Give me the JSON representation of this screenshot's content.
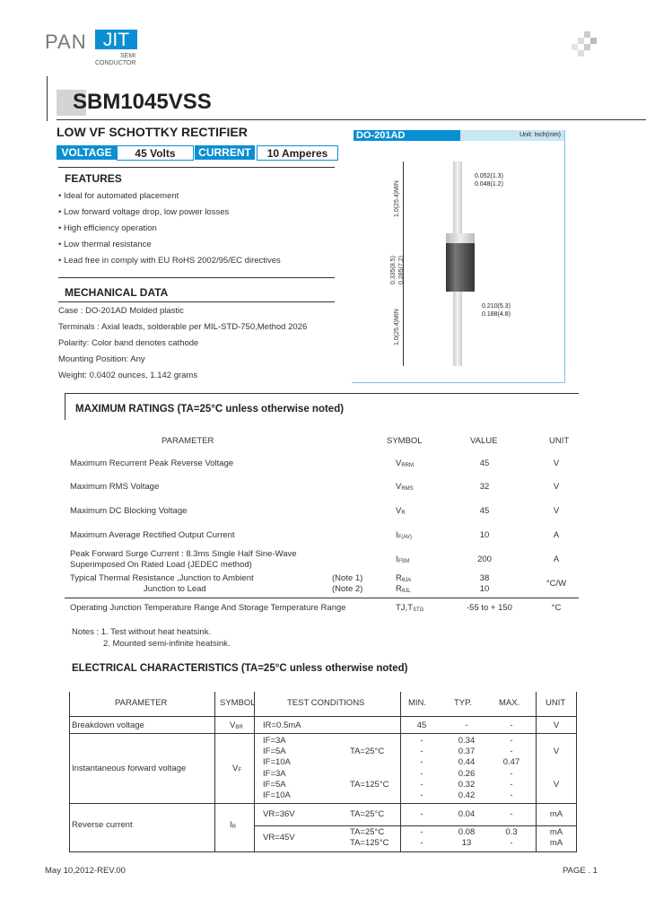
{
  "logo": {
    "left": "PAN",
    "right": "JIT",
    "sub1": "SEMI",
    "sub2": "CONDUCTOR"
  },
  "colors": {
    "accent": "#0a8fd2",
    "accent_light": "#c8e6f4"
  },
  "title": "SBM1045VSS",
  "subtitle": "LOW VF SCHOTTKY RECTIFIER",
  "specs": {
    "voltage_label": "VOLTAGE",
    "voltage_value": "45 Volts",
    "current_label": "CURRENT",
    "current_value": "10 Amperes"
  },
  "features": {
    "heading": "FEATURES",
    "items": [
      "Ideal for automated placement",
      "Low forward voltage drop, low power losses",
      "High efficiency operation",
      "Low thermal resistance",
      "Lead free in comply with EU RoHS 2002/95/EC directives"
    ]
  },
  "mechanical": {
    "heading": "MECHANICAL DATA",
    "items": [
      "Case : DO-201AD Molded plastic",
      "Terminals : Axial leads, solderable per MIL-STD-750,Method 2026",
      "Polarity:  Color band denotes cathode",
      "Mounting Position: Any",
      "Weight: 0.0402 ounces, 1.142 grams"
    ]
  },
  "package": {
    "name": "DO-201AD",
    "unit": "Unit: Inch(mm)",
    "lead_dia": [
      "0.052(1.3)",
      "0.048(1.2)"
    ],
    "body_dia": [
      "0.210(5.3)",
      "0.188(4.8)"
    ],
    "lead_len": "1.0(25.4)MIN",
    "body_len": [
      "0.335(8.5)",
      "0.285(7.2)"
    ]
  },
  "max_ratings": {
    "title": "MAXIMUM  RATINGS (TA=25°C unless otherwise noted)",
    "headers": [
      "PARAMETER",
      "SYMBOL",
      "VALUE",
      "UNIT"
    ],
    "rows": [
      {
        "param": [
          "Maximum Recurrent Peak Reverse Voltage"
        ],
        "note": [],
        "sym": [
          [
            "V",
            "RRM"
          ]
        ],
        "val": [
          "45"
        ],
        "unit": "V"
      },
      {
        "param": [
          "Maximum RMS Voltage"
        ],
        "note": [],
        "sym": [
          [
            "V",
            "RMS"
          ]
        ],
        "val": [
          "32"
        ],
        "unit": "V"
      },
      {
        "param": [
          "Maximum DC Blocking Voltage"
        ],
        "note": [],
        "sym": [
          [
            "V",
            "R"
          ]
        ],
        "val": [
          "45"
        ],
        "unit": "V"
      },
      {
        "param": [
          "Maximum Average Rectified Output Current"
        ],
        "note": [],
        "sym": [
          [
            "I",
            "F(AV)"
          ]
        ],
        "val": [
          "10"
        ],
        "unit": "A"
      },
      {
        "param": [
          "Peak Forward Surge Current : 8.3ms Single Half Sine-Wave",
          "Superimposed On Rated Load (JEDEC method)"
        ],
        "note": [],
        "sym": [
          [
            "I",
            "FSM"
          ]
        ],
        "val": [
          "200"
        ],
        "unit": "A"
      },
      {
        "param": [
          "Typical Thermal Resistance ,Junction to Ambient",
          "Junction to Lead"
        ],
        "note": [
          "(Note 1)",
          "(Note 2)"
        ],
        "sym": [
          [
            "R",
            "θJA"
          ],
          [
            "R",
            "θJL"
          ]
        ],
        "val": [
          "38",
          "10"
        ],
        "unit": "°C/W"
      },
      {
        "param": [
          "Operating Junction Temperature Range And Storage Temperature Range"
        ],
        "note": [],
        "sym": [
          [
            "TJ,T",
            "STG"
          ]
        ],
        "val": [
          "-55 to + 150"
        ],
        "unit": "°C"
      }
    ],
    "notes": [
      "Notes :  1.  Test without heat heatsink.",
      "2.  Mounted semi-infinite heatsink."
    ]
  },
  "electrical": {
    "title": "ELECTRICAL  CHARACTERISTICS (TA=25°C unless otherwise noted)",
    "headers": [
      "PARAMETER",
      "SYMBOL",
      "TEST CONDITIONS",
      "MIN.",
      "TYP.",
      "MAX.",
      "UNIT"
    ],
    "rows": [
      {
        "param": "Breakdown voltage",
        "sym": [
          "V",
          "BR"
        ],
        "cond": "IR=0.5mA",
        "temp": "",
        "min": "45",
        "typ": "-",
        "max": "-",
        "unit": "V"
      },
      {
        "param": "",
        "sym": [
          "",
          ""
        ],
        "cond": "IF=3A",
        "temp": "",
        "min": "-",
        "typ": "0.34",
        "max": "-",
        "unit": ""
      },
      {
        "param": "",
        "sym": [
          "",
          ""
        ],
        "cond": "IF=5A",
        "temp": "TA=25°C",
        "min": "-",
        "typ": "0.37",
        "max": "-",
        "unit": "V"
      },
      {
        "param": "Instantaneous forward voltage",
        "sym": [
          "V",
          "F"
        ],
        "cond": "IF=10A",
        "temp": "",
        "min": "-",
        "typ": "0.44",
        "max": "0.47",
        "unit": ""
      },
      {
        "param": "",
        "sym": [
          "",
          ""
        ],
        "cond": "IF=3A",
        "temp": "",
        "min": "-",
        "typ": "0.26",
        "max": "-",
        "unit": ""
      },
      {
        "param": "",
        "sym": [
          "",
          ""
        ],
        "cond": "IF=5A",
        "temp": "TA=125°C",
        "min": "-",
        "typ": "0.32",
        "max": "-",
        "unit": "V"
      },
      {
        "param": "",
        "sym": [
          "",
          ""
        ],
        "cond": "IF=10A",
        "temp": "",
        "min": "-",
        "typ": "0.42",
        "max": "-",
        "unit": ""
      },
      {
        "param": "",
        "sym": [
          "",
          ""
        ],
        "cond": "VR=36V",
        "temp": "TA=25°C",
        "min": "-",
        "typ": "0.04",
        "max": "-",
        "unit": "mA"
      },
      {
        "param": "Reverse current",
        "sym": [
          "I",
          "R"
        ],
        "cond": "",
        "temp": "",
        "min": "",
        "typ": "",
        "max": "",
        "unit": ""
      },
      {
        "param": "",
        "sym": [
          "",
          ""
        ],
        "cond": "VR=45V",
        "temp": "TA=25°C",
        "min": "-",
        "typ": "0.08",
        "max": "0.3",
        "unit": "mA"
      },
      {
        "param": "",
        "sym": [
          "",
          ""
        ],
        "cond": "",
        "temp": "TA=125°C",
        "min": "-",
        "typ": "13",
        "max": "-",
        "unit": "mA"
      }
    ]
  },
  "footer": {
    "date": "May 10,2012-REV.00",
    "page": "PAGE . 1"
  }
}
